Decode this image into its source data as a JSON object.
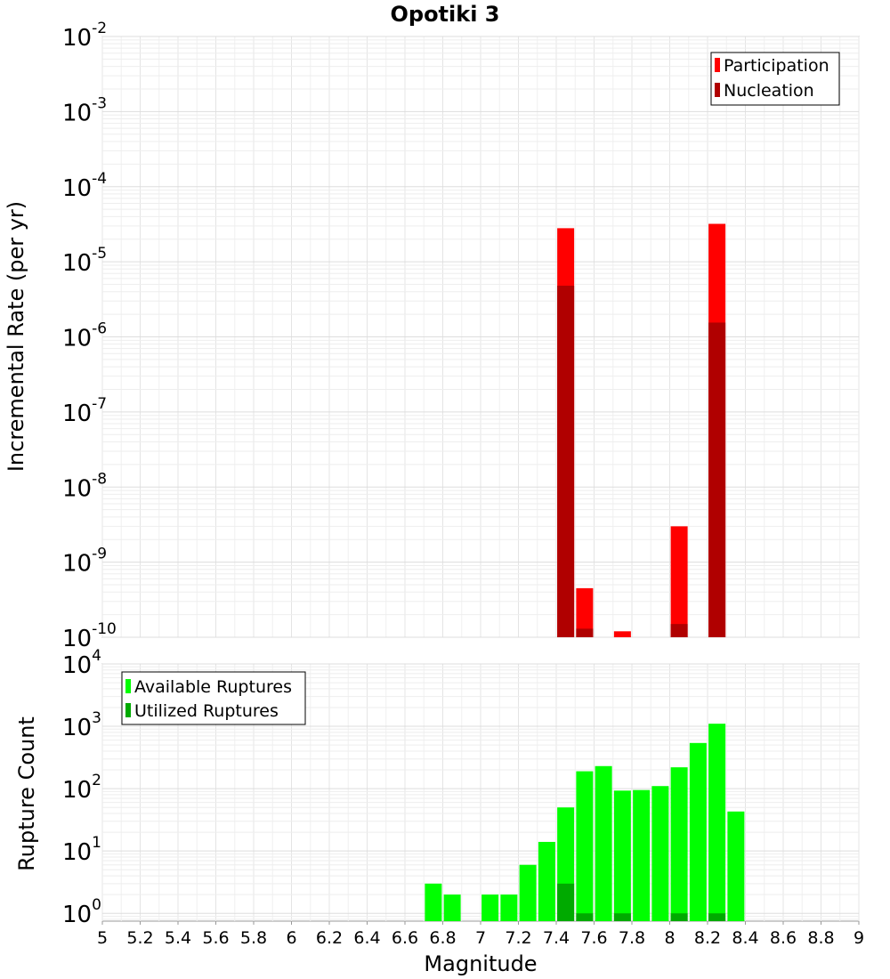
{
  "chart_data": [
    {
      "type": "bar",
      "title": "Opotiki 3",
      "xlabel": "",
      "ylabel": "Incremental Rate (per yr)",
      "yscale": "log",
      "xlim": [
        5,
        9
      ],
      "ylim": [
        1e-10,
        0.01
      ],
      "y_ticks": [
        {
          "base": "10",
          "exp": "-10"
        },
        {
          "base": "10",
          "exp": "-9"
        },
        {
          "base": "10",
          "exp": "-8"
        },
        {
          "base": "10",
          "exp": "-7"
        },
        {
          "base": "10",
          "exp": "-6"
        },
        {
          "base": "10",
          "exp": "-5"
        },
        {
          "base": "10",
          "exp": "-4"
        },
        {
          "base": "10",
          "exp": "-3"
        },
        {
          "base": "10",
          "exp": "-2"
        }
      ],
      "grid": true,
      "legend_position": "top-right",
      "series": [
        {
          "name": "Participation",
          "color": "#ff0000",
          "x": [
            7.45,
            7.55,
            7.75,
            8.05,
            8.25
          ],
          "values": [
            2.8e-05,
            4.5e-10,
            1.2e-10,
            3e-09,
            3.2e-05
          ]
        },
        {
          "name": "Nucleation",
          "color": "#b00000",
          "x": [
            7.45,
            7.55,
            8.05,
            8.25
          ],
          "values": [
            4.8e-06,
            1.3e-10,
            1.5e-10,
            1.55e-06
          ]
        }
      ]
    },
    {
      "type": "bar",
      "title": "",
      "xlabel": "Magnitude",
      "ylabel": "Rupture Count",
      "yscale": "log",
      "xlim": [
        5,
        9
      ],
      "ylim": [
        0.75,
        10000.0
      ],
      "x_ticks": [
        "5",
        "5.2",
        "5.4",
        "5.6",
        "5.8",
        "6",
        "6.2",
        "6.4",
        "6.6",
        "6.8",
        "7",
        "7.2",
        "7.4",
        "7.6",
        "7.8",
        "8",
        "8.2",
        "8.4",
        "8.6",
        "8.8",
        "9"
      ],
      "y_ticks": [
        {
          "base": "10",
          "exp": "0"
        },
        {
          "base": "10",
          "exp": "1"
        },
        {
          "base": "10",
          "exp": "2"
        },
        {
          "base": "10",
          "exp": "3"
        },
        {
          "base": "10",
          "exp": "4"
        }
      ],
      "grid": true,
      "legend_position": "top-left",
      "series": [
        {
          "name": "Available Ruptures",
          "color": "#00ff00",
          "x": [
            6.75,
            6.85,
            7.05,
            7.15,
            7.25,
            7.35,
            7.45,
            7.55,
            7.65,
            7.75,
            7.85,
            7.95,
            8.05,
            8.15,
            8.25,
            8.35
          ],
          "values": [
            3,
            2,
            2,
            2,
            6,
            14,
            50,
            190,
            230,
            93,
            95,
            110,
            220,
            540,
            1100,
            43
          ]
        },
        {
          "name": "Utilized Ruptures",
          "color": "#00aa00",
          "x": [
            7.45,
            7.55,
            7.75,
            8.05,
            8.25
          ],
          "values": [
            3,
            1,
            1,
            1,
            1
          ]
        }
      ]
    }
  ]
}
